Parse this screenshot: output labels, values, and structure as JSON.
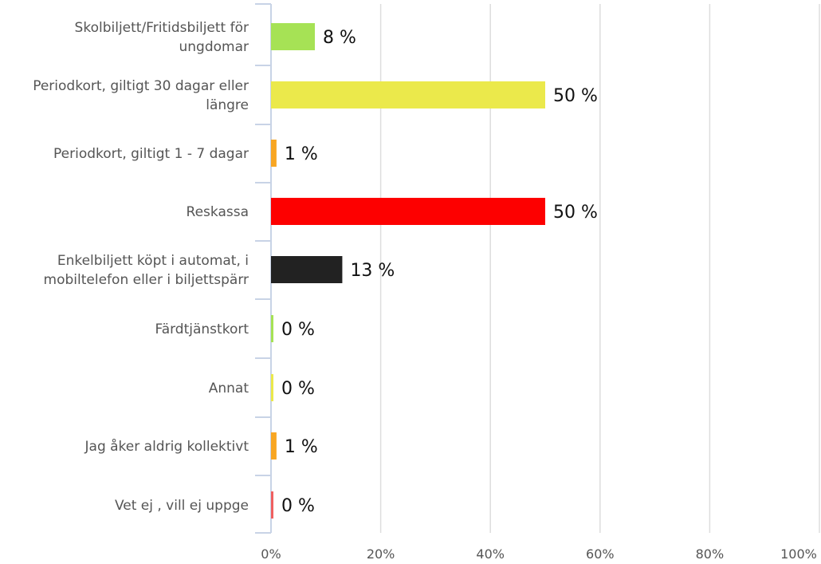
{
  "chart_data": {
    "type": "bar",
    "orientation": "horizontal",
    "title": "",
    "xlabel": "",
    "ylabel": "",
    "xlim": [
      0,
      100
    ],
    "grid": true,
    "legend": "none",
    "categories": [
      [
        "Skolbiljett/Fritidsbiljett för",
        "ungdomar"
      ],
      [
        "Periodkort, giltigt 30 dagar eller",
        "längre"
      ],
      [
        "Periodkort, giltigt 1 - 7 dagar"
      ],
      [
        "Reskassa"
      ],
      [
        "Enkelbiljett köpt i automat, i",
        "mobiltelefon eller i biljettspärr"
      ],
      [
        "Färdtjänstkort"
      ],
      [
        "Annat"
      ],
      [
        "Jag åker aldrig kollektivt"
      ],
      [
        "Vet ej , vill ej uppge"
      ]
    ],
    "values": [
      8,
      50,
      1,
      50,
      13,
      0,
      0,
      1,
      0
    ],
    "value_labels": [
      "8 %",
      "50 %",
      "1 %",
      "50 %",
      "13 %",
      "0 %",
      "0 %",
      "1 %",
      "0 %"
    ],
    "colors": [
      "#a6e255",
      "#ebe94b",
      "#f8a623",
      "#fd0000",
      "#222222",
      "#a6e255",
      "#ebe94b",
      "#f8a623",
      "#f06060"
    ],
    "ticks": [
      0,
      20,
      40,
      60,
      80,
      100
    ],
    "tick_labels": [
      "0%",
      "20%",
      "40%",
      "60%",
      "80%",
      "100%"
    ],
    "axis_color": "#c8d3e6",
    "grid_color": "#dddddd"
  }
}
